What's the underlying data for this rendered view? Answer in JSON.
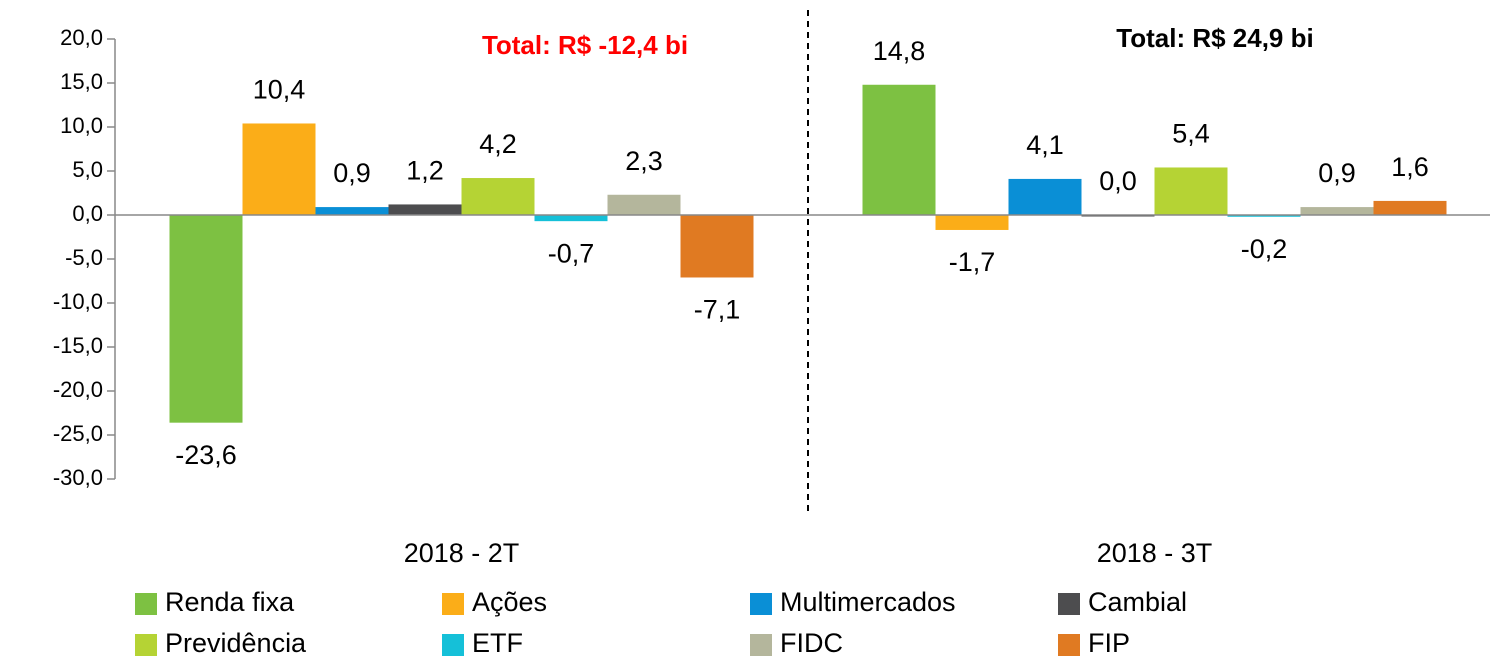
{
  "chart_data": {
    "type": "bar",
    "categories": [
      "2018 - 2T",
      "2018 - 3T"
    ],
    "series": [
      {
        "name": "Renda fixa",
        "color": "#7dc142",
        "values": [
          -23.6,
          14.8
        ],
        "value_labels": [
          "-23,6",
          "14,8"
        ]
      },
      {
        "name": "Ações",
        "color": "#fbad18",
        "values": [
          10.4,
          -1.7
        ],
        "value_labels": [
          "10,4",
          "-1,7"
        ]
      },
      {
        "name": "Multimercados",
        "color": "#0a8fd6",
        "values": [
          0.9,
          4.1
        ],
        "value_labels": [
          "0,9",
          "4,1"
        ]
      },
      {
        "name": "Cambial",
        "color": "#4d4d4f",
        "values": [
          1.2,
          0.0
        ],
        "value_labels": [
          "1,2",
          "0,0"
        ]
      },
      {
        "name": "Previdência",
        "color": "#b5d334",
        "values": [
          4.2,
          5.4
        ],
        "value_labels": [
          "4,2",
          "5,4"
        ]
      },
      {
        "name": "ETF",
        "color": "#15c0d8",
        "values": [
          -0.7,
          -0.2
        ],
        "value_labels": [
          "-0,7",
          "-0,2"
        ]
      },
      {
        "name": "FIDC",
        "color": "#b4b69c",
        "values": [
          2.3,
          0.9
        ],
        "value_labels": [
          "2,3",
          "0,9"
        ]
      },
      {
        "name": "FIP",
        "color": "#e07a22",
        "values": [
          -7.1,
          1.6
        ],
        "value_labels": [
          "-7,1",
          "1,6"
        ]
      }
    ],
    "ylim": [
      -30,
      20
    ],
    "yticks": [
      {
        "value": -30,
        "label": "-30,0"
      },
      {
        "value": -25,
        "label": "-25,0"
      },
      {
        "value": -20,
        "label": "-20,0"
      },
      {
        "value": -15,
        "label": "-15,0"
      },
      {
        "value": -10,
        "label": "-10,0"
      },
      {
        "value": -5,
        "label": "-5,0"
      },
      {
        "value": 0,
        "label": "0,0"
      },
      {
        "value": 5,
        "label": "5,0"
      },
      {
        "value": 10,
        "label": "10,0"
      },
      {
        "value": 15,
        "label": "15,0"
      },
      {
        "value": 20,
        "label": "20,0"
      }
    ],
    "annotations": [
      {
        "text": "Total: R$ -12,4 bi",
        "color": "#ff0000"
      },
      {
        "text": "Total: R$ 24,9 bi",
        "color": "#000000"
      }
    ],
    "legend": "bottom"
  }
}
